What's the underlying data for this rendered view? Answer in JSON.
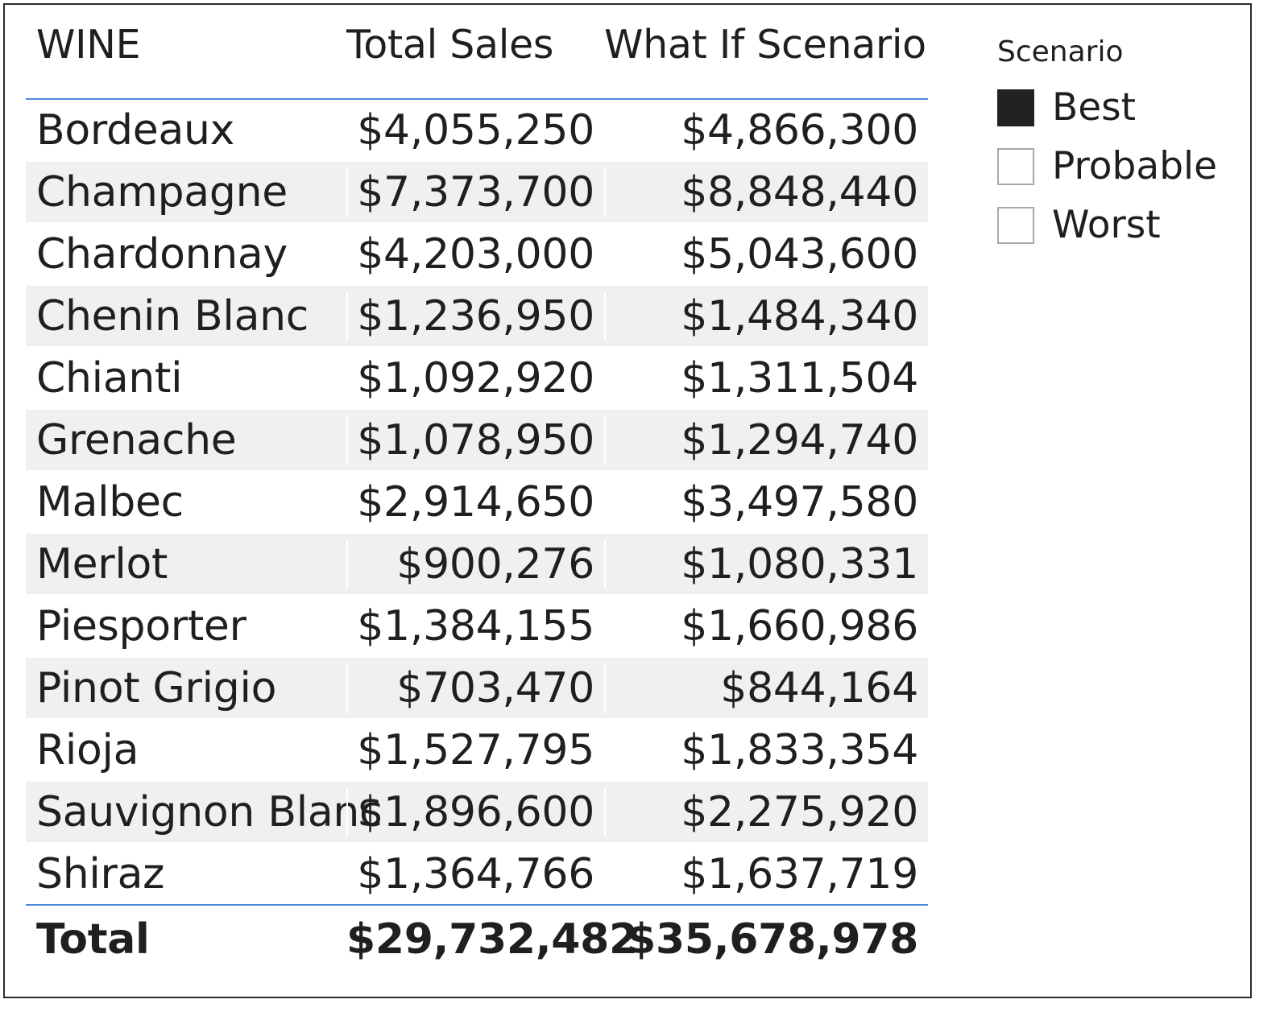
{
  "table": {
    "headers": {
      "wine": "WINE",
      "total_sales": "Total Sales",
      "what_if": "What If Scenario"
    },
    "rows": [
      {
        "wine": "Bordeaux",
        "total_sales": "$4,055,250",
        "what_if": "$4,866,300"
      },
      {
        "wine": "Champagne",
        "total_sales": "$7,373,700",
        "what_if": "$8,848,440"
      },
      {
        "wine": "Chardonnay",
        "total_sales": "$4,203,000",
        "what_if": "$5,043,600"
      },
      {
        "wine": "Chenin Blanc",
        "total_sales": "$1,236,950",
        "what_if": "$1,484,340"
      },
      {
        "wine": "Chianti",
        "total_sales": "$1,092,920",
        "what_if": "$1,311,504"
      },
      {
        "wine": "Grenache",
        "total_sales": "$1,078,950",
        "what_if": "$1,294,740"
      },
      {
        "wine": "Malbec",
        "total_sales": "$2,914,650",
        "what_if": "$3,497,580"
      },
      {
        "wine": "Merlot",
        "total_sales": "$900,276",
        "what_if": "$1,080,331"
      },
      {
        "wine": "Piesporter",
        "total_sales": "$1,384,155",
        "what_if": "$1,660,986"
      },
      {
        "wine": "Pinot Grigio",
        "total_sales": "$703,470",
        "what_if": "$844,164"
      },
      {
        "wine": "Rioja",
        "total_sales": "$1,527,795",
        "what_if": "$1,833,354"
      },
      {
        "wine": "Sauvignon Blanc",
        "total_sales": "$1,896,600",
        "what_if": "$2,275,920"
      },
      {
        "wine": "Shiraz",
        "total_sales": "$1,364,766",
        "what_if": "$1,637,719"
      }
    ],
    "total": {
      "label": "Total",
      "total_sales": "$29,732,482",
      "what_if": "$35,678,978"
    }
  },
  "slicer": {
    "title": "Scenario",
    "items": [
      {
        "label": "Best",
        "checked": true
      },
      {
        "label": "Probable",
        "checked": false
      },
      {
        "label": "Worst",
        "checked": false
      }
    ]
  },
  "colors": {
    "header_rule": "#4a8ad8",
    "alt_row": "#f0f0f0",
    "checked_fill": "#222222",
    "checkbox_border": "#a8a8a8"
  }
}
